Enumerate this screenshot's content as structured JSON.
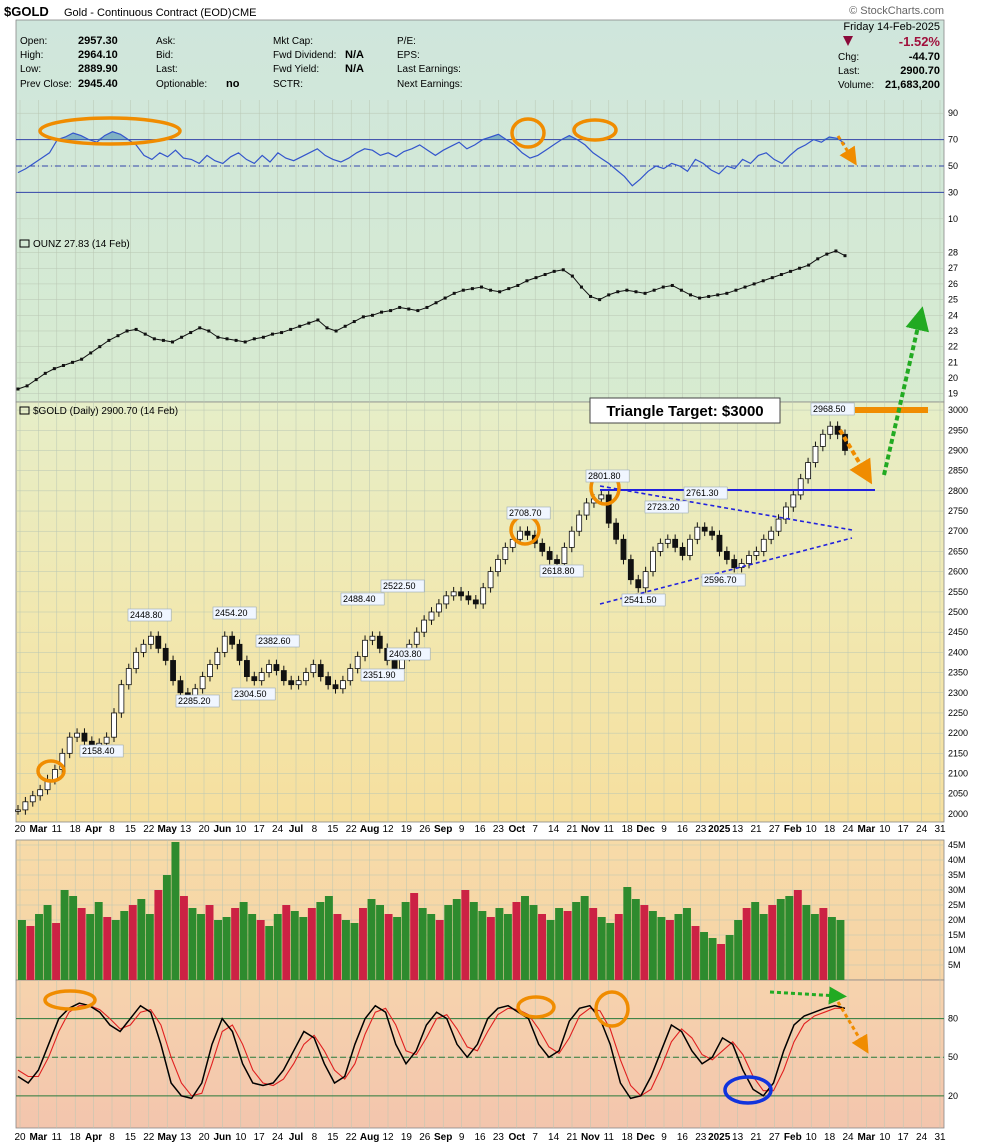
{
  "header": {
    "symbol": "$GOLD",
    "name": "Gold - Continuous Contract (EOD)",
    "exchange": "CME",
    "brand": "© StockCharts.com",
    "date": "Friday  14-Feb-2025",
    "change_pct": "-1.52%",
    "chg_label": "Chg:",
    "chg": "-44.70",
    "last_label": "Last:",
    "last": "2900.70",
    "volume_label": "Volume:",
    "volume": "21,683,200",
    "fields": [
      {
        "label": "Open:",
        "value": "2957.30"
      },
      {
        "label": "High:",
        "value": "2964.10"
      },
      {
        "label": "Low:",
        "value": "2889.90"
      },
      {
        "label": "Prev Close:",
        "value": "2945.40"
      }
    ],
    "fields2": [
      {
        "label": "Ask:",
        "value": ""
      },
      {
        "label": "Bid:",
        "value": ""
      },
      {
        "label": "Last:",
        "value": ""
      },
      {
        "label": "Optionable:",
        "value": "no"
      }
    ],
    "fields3": [
      {
        "label": "Mkt Cap:",
        "value": ""
      },
      {
        "label": "Fwd Dividend:",
        "value": "N/A"
      },
      {
        "label": "Fwd Yield:",
        "value": "N/A"
      },
      {
        "label": "SCTR:",
        "value": ""
      }
    ],
    "fields4": [
      {
        "label": "P/E:",
        "value": ""
      },
      {
        "label": "EPS:",
        "value": ""
      },
      {
        "label": "Last Earnings:",
        "value": ""
      },
      {
        "label": "Next Earnings:",
        "value": ""
      }
    ]
  },
  "colors": {
    "rsi_line": "#3355cc",
    "up_bar": "#2e8b2e",
    "down_bar": "#cc2244",
    "orange": "#f08c00",
    "green_arrow": "#22aa22",
    "blue_circle": "#1133dd",
    "pattern": "#2222dd"
  },
  "chart_data": [
    {
      "type": "line",
      "panel": "rsi",
      "y_ticks": [
        90,
        70,
        50,
        30,
        10
      ],
      "ylim": [
        0,
        100
      ],
      "reference_lines": [
        70,
        50,
        30
      ],
      "values": [
        45,
        48,
        52,
        56,
        60,
        70,
        72,
        75,
        73,
        70,
        68,
        73,
        76,
        74,
        70,
        66,
        58,
        55,
        60,
        57,
        62,
        56,
        55,
        52,
        58,
        54,
        52,
        57,
        60,
        55,
        52,
        58,
        53,
        60,
        56,
        54,
        57,
        60,
        63,
        58,
        55,
        53,
        56,
        60,
        63,
        62,
        58,
        60,
        57,
        61,
        63,
        66,
        62,
        58,
        62,
        65,
        68,
        63,
        66,
        70,
        72,
        74,
        70,
        66,
        60,
        56,
        58,
        62,
        66,
        70,
        73,
        70,
        66,
        60,
        56,
        52,
        47,
        42,
        35,
        40,
        46,
        50,
        48,
        52,
        50,
        46,
        55,
        52,
        47,
        44,
        50,
        48,
        55,
        52,
        58,
        60,
        55,
        52,
        58,
        63,
        66,
        70,
        68,
        72,
        71,
        67
      ]
    },
    {
      "type": "line",
      "panel": "ounz",
      "legend": "OUNZ 27.83 (14 Feb)",
      "y_ticks": [
        28,
        27,
        26,
        25,
        24,
        23,
        22,
        21,
        20,
        19
      ],
      "ylim": [
        18.6,
        28.8
      ],
      "values": [
        19.3,
        19.5,
        19.9,
        20.3,
        20.6,
        20.8,
        21.0,
        21.2,
        21.6,
        22.0,
        22.4,
        22.7,
        23.0,
        23.1,
        22.8,
        22.5,
        22.4,
        22.3,
        22.6,
        22.9,
        23.2,
        23.0,
        22.6,
        22.5,
        22.4,
        22.3,
        22.5,
        22.6,
        22.8,
        22.9,
        23.1,
        23.3,
        23.5,
        23.7,
        23.2,
        23.0,
        23.3,
        23.6,
        23.9,
        24.0,
        24.2,
        24.3,
        24.5,
        24.4,
        24.3,
        24.5,
        24.8,
        25.1,
        25.4,
        25.6,
        25.7,
        25.8,
        25.6,
        25.5,
        25.7,
        25.9,
        26.2,
        26.4,
        26.6,
        26.8,
        26.9,
        26.5,
        25.8,
        25.2,
        25.0,
        25.3,
        25.5,
        25.6,
        25.5,
        25.4,
        25.6,
        25.8,
        25.9,
        25.6,
        25.3,
        25.1,
        25.2,
        25.3,
        25.4,
        25.6,
        25.8,
        26.0,
        26.2,
        26.4,
        26.6,
        26.8,
        27.0,
        27.2,
        27.6,
        27.9,
        28.1,
        27.8
      ]
    },
    {
      "type": "line",
      "panel": "price",
      "legend": "$GOLD (Daily) 2900.70 (14 Feb)",
      "y_ticks": [
        3000,
        2950,
        2900,
        2850,
        2800,
        2750,
        2700,
        2650,
        2600,
        2550,
        2500,
        2450,
        2400,
        2350,
        2300,
        2250,
        2200,
        2150,
        2100,
        2050,
        2000
      ],
      "ylim": [
        1980,
        3020
      ],
      "close": [
        2010,
        2030,
        2045,
        2060,
        2085,
        2110,
        2150,
        2190,
        2200,
        2180,
        2170,
        2175,
        2190,
        2250,
        2320,
        2360,
        2400,
        2420,
        2440,
        2410,
        2380,
        2330,
        2300,
        2290,
        2310,
        2340,
        2370,
        2400,
        2440,
        2420,
        2380,
        2340,
        2330,
        2350,
        2370,
        2355,
        2330,
        2320,
        2330,
        2350,
        2370,
        2340,
        2320,
        2310,
        2330,
        2360,
        2390,
        2430,
        2440,
        2410,
        2380,
        2360,
        2390,
        2420,
        2450,
        2480,
        2500,
        2520,
        2540,
        2550,
        2540,
        2530,
        2520,
        2560,
        2600,
        2630,
        2660,
        2680,
        2700,
        2690,
        2670,
        2650,
        2630,
        2620,
        2660,
        2700,
        2740,
        2770,
        2780,
        2790,
        2720,
        2680,
        2630,
        2580,
        2560,
        2600,
        2650,
        2670,
        2680,
        2660,
        2640,
        2680,
        2710,
        2700,
        2690,
        2650,
        2630,
        2610,
        2620,
        2640,
        2650,
        2680,
        2700,
        2730,
        2760,
        2790,
        2830,
        2870,
        2910,
        2940,
        2960,
        2940,
        2900
      ],
      "annotations": [
        {
          "label": "2448.80"
        },
        {
          "label": "2158.40"
        },
        {
          "label": "2454.20"
        },
        {
          "label": "2285.20"
        },
        {
          "label": "2382.60"
        },
        {
          "label": "2304.50"
        },
        {
          "label": "2488.40"
        },
        {
          "label": "2522.50"
        },
        {
          "label": "2403.80"
        },
        {
          "label": "2351.90"
        },
        {
          "label": "2708.70"
        },
        {
          "label": "2618.80"
        },
        {
          "label": "2801.80"
        },
        {
          "label": "2541.50"
        },
        {
          "label": "2723.20"
        },
        {
          "label": "2761.30"
        },
        {
          "label": "2596.70"
        },
        {
          "label": "2968.50"
        }
      ],
      "callout": "Triangle Target: $3000"
    },
    {
      "type": "bar",
      "panel": "volume",
      "y_ticks": [
        "45M",
        "40M",
        "35M",
        "30M",
        "25M",
        "20M",
        "15M",
        "10M",
        "5M"
      ],
      "ylim": [
        0,
        46
      ],
      "values": [
        20,
        18,
        22,
        25,
        19,
        30,
        28,
        24,
        22,
        26,
        21,
        20,
        23,
        25,
        27,
        22,
        30,
        35,
        46,
        28,
        24,
        22,
        25,
        20,
        21,
        24,
        26,
        22,
        20,
        18,
        22,
        25,
        23,
        21,
        24,
        26,
        28,
        22,
        20,
        19,
        24,
        27,
        25,
        22,
        21,
        26,
        29,
        24,
        22,
        20,
        25,
        27,
        30,
        26,
        23,
        21,
        24,
        22,
        26,
        28,
        25,
        22,
        20,
        24,
        23,
        26,
        28,
        24,
        21,
        19,
        22,
        31,
        27,
        25,
        23,
        21,
        20,
        22,
        24,
        18,
        16,
        14,
        12,
        15,
        20,
        24,
        26,
        22,
        25,
        27,
        28,
        30,
        25,
        22,
        24,
        21,
        20
      ]
    },
    {
      "type": "line",
      "panel": "stochastic",
      "y_ticks": [
        80,
        50,
        20
      ],
      "ylim": [
        0,
        100
      ],
      "reference_lines": [
        80,
        50,
        20
      ],
      "fast": [
        35,
        30,
        40,
        60,
        80,
        88,
        92,
        90,
        85,
        75,
        70,
        80,
        90,
        85,
        60,
        30,
        20,
        18,
        30,
        60,
        80,
        70,
        45,
        30,
        28,
        30,
        40,
        55,
        70,
        65,
        45,
        30,
        35,
        60,
        80,
        90,
        85,
        60,
        45,
        55,
        75,
        85,
        80,
        60,
        50,
        60,
        80,
        88,
        90,
        85,
        80,
        60,
        50,
        55,
        78,
        88,
        90,
        80,
        60,
        30,
        18,
        20,
        35,
        55,
        75,
        70,
        55,
        45,
        50,
        65,
        60,
        40,
        25,
        20,
        30,
        55,
        75,
        82,
        85,
        88,
        90,
        88
      ],
      "slow": [
        40,
        35,
        35,
        50,
        70,
        85,
        90,
        90,
        87,
        80,
        72,
        75,
        85,
        87,
        75,
        50,
        30,
        20,
        22,
        45,
        70,
        75,
        60,
        40,
        30,
        28,
        33,
        45,
        60,
        67,
        55,
        40,
        33,
        45,
        68,
        85,
        88,
        75,
        55,
        52,
        65,
        80,
        83,
        72,
        58,
        55,
        70,
        83,
        88,
        87,
        83,
        72,
        58,
        53,
        65,
        82,
        88,
        86,
        72,
        48,
        28,
        20,
        25,
        42,
        62,
        72,
        65,
        52,
        48,
        55,
        62,
        52,
        35,
        24,
        24,
        40,
        62,
        76,
        82,
        85,
        88,
        88
      ]
    }
  ],
  "x_axis": {
    "ticks_top": [
      {
        "t": "20",
        "b": false
      },
      {
        "t": "Mar",
        "b": true
      },
      {
        "t": "11",
        "b": false
      },
      {
        "t": "18",
        "b": false
      },
      {
        "t": "Apr",
        "b": true
      },
      {
        "t": "8",
        "b": false
      },
      {
        "t": "15",
        "b": false
      },
      {
        "t": "22",
        "b": false
      },
      {
        "t": "May",
        "b": true
      },
      {
        "t": "13",
        "b": false
      },
      {
        "t": "20",
        "b": false
      },
      {
        "t": "Jun",
        "b": true
      },
      {
        "t": "10",
        "b": false
      },
      {
        "t": "17",
        "b": false
      },
      {
        "t": "24",
        "b": false
      },
      {
        "t": "Jul",
        "b": true
      },
      {
        "t": "8",
        "b": false
      },
      {
        "t": "15",
        "b": false
      },
      {
        "t": "22",
        "b": false
      },
      {
        "t": "Aug",
        "b": true
      },
      {
        "t": "12",
        "b": false
      },
      {
        "t": "19",
        "b": false
      },
      {
        "t": "26",
        "b": false
      },
      {
        "t": "Sep",
        "b": true
      },
      {
        "t": "9",
        "b": false
      },
      {
        "t": "16",
        "b": false
      },
      {
        "t": "23",
        "b": false
      },
      {
        "t": "Oct",
        "b": true
      },
      {
        "t": "7",
        "b": false
      },
      {
        "t": "14",
        "b": false
      },
      {
        "t": "21",
        "b": false
      },
      {
        "t": "Nov",
        "b": true
      },
      {
        "t": "11",
        "b": false
      },
      {
        "t": "18",
        "b": false
      },
      {
        "t": "Dec",
        "b": true
      },
      {
        "t": "9",
        "b": false
      },
      {
        "t": "16",
        "b": false
      },
      {
        "t": "23",
        "b": false
      },
      {
        "t": "2025",
        "b": true
      },
      {
        "t": "13",
        "b": false
      },
      {
        "t": "21",
        "b": false
      },
      {
        "t": "27",
        "b": false
      },
      {
        "t": "Feb",
        "b": true
      },
      {
        "t": "10",
        "b": false
      },
      {
        "t": "18",
        "b": false
      },
      {
        "t": "24",
        "b": false
      },
      {
        "t": "Mar",
        "b": true
      },
      {
        "t": "10",
        "b": false
      },
      {
        "t": "17",
        "b": false
      },
      {
        "t": "24",
        "b": false
      },
      {
        "t": "31",
        "b": false
      }
    ]
  }
}
